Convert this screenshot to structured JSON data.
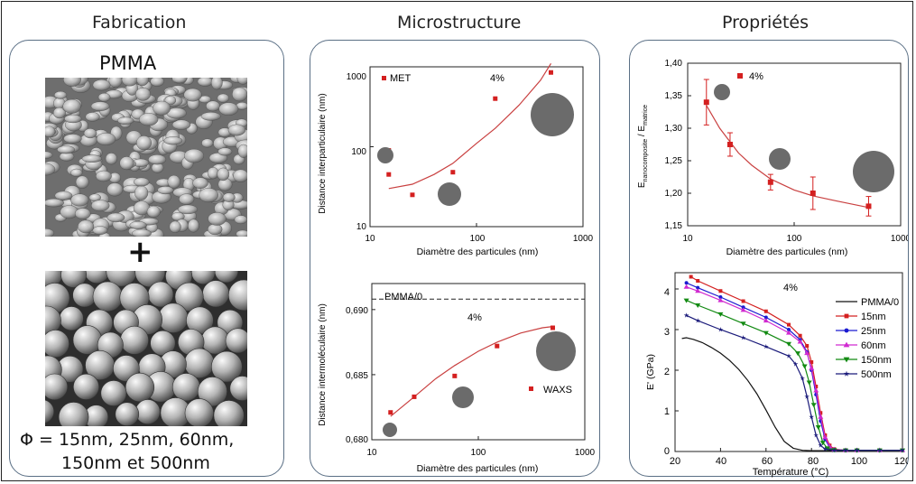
{
  "columns": {
    "fabrication": "Fabrication",
    "microstructure": "Microstructure",
    "proprietes": "Propriétés"
  },
  "fabrication": {
    "material": "PMMA",
    "plus": "+",
    "diameters_line1": "Φ = 15nm, 25nm, 60nm,",
    "diameters_line2": "150nm et 500nm"
  },
  "charts": {
    "met": {
      "legend": "MET",
      "annotation": "4%",
      "xlabel": "Diamètre des particules (nm)",
      "ylabel": "Distance interparticulaire (nm)",
      "xticks": [
        "10",
        "100",
        "1000"
      ],
      "yticks": [
        "10",
        "100",
        "1000"
      ]
    },
    "waxs": {
      "legend": "WAXS",
      "annotation": "4%",
      "reference": "PMMA/0",
      "xlabel": "Diamètre des particules (nm)",
      "ylabel": "Distance intermoléculaire (nm)",
      "xticks": [
        "10",
        "100",
        "1000"
      ],
      "yticks": [
        "0,680",
        "0,685",
        "0,690"
      ]
    },
    "modulus": {
      "legend": "4%",
      "xlabel": "Diamètre des particules (nm)",
      "ylabel_main": "E",
      "ylabel_sub1": "nanocomposite",
      "ylabel_mid": " / E",
      "ylabel_sub2": "matrice",
      "xticks": [
        "10",
        "100",
        "1000"
      ],
      "yticks": [
        "1,15",
        "1,20",
        "1,25",
        "1,30",
        "1,35",
        "1,40"
      ]
    },
    "dma": {
      "annotation": "4%",
      "xlabel": "Température (°C)",
      "ylabel": "E' (GPa)",
      "xticks": [
        "20",
        "40",
        "60",
        "80",
        "100",
        "120"
      ],
      "yticks": [
        "0",
        "1",
        "2",
        "3",
        "4"
      ],
      "legend": [
        "PMMA/0",
        "15nm",
        "25nm",
        "60nm",
        "150nm",
        "500nm"
      ]
    }
  },
  "chart_data": [
    {
      "type": "scatter",
      "xscale": "log",
      "yscale": "log",
      "xlim": [
        10,
        1000
      ],
      "ylim": [
        10,
        1000
      ],
      "xlabel": "Diamètre des particules (nm)",
      "ylabel": "Distance interparticulaire (nm)",
      "series": [
        {
          "name": "MET",
          "color": "#d42020",
          "x": [
            15,
            15,
            25,
            60,
            150,
            500
          ],
          "y": [
            90,
            45,
            25,
            48,
            400,
            850
          ]
        }
      ],
      "trend": {
        "color": "#c94040",
        "x": [
          15,
          25,
          40,
          60,
          100,
          150,
          250,
          400,
          500
        ],
        "y": [
          30,
          34,
          45,
          62,
          110,
          170,
          330,
          680,
          1100
        ]
      },
      "annotations": [
        "4%"
      ]
    },
    {
      "type": "scatter",
      "xscale": "log",
      "xlim": [
        10,
        1000
      ],
      "ylim": [
        0.68,
        0.692
      ],
      "xlabel": "Diamètre des particules (nm)",
      "ylabel": "Distance intermoléculaire (nm)",
      "reference_line": {
        "label": "PMMA/0",
        "y": 0.6908
      },
      "series": [
        {
          "name": "WAXS",
          "color": "#d42020",
          "x": [
            15,
            25,
            60,
            150,
            500
          ],
          "y": [
            0.6821,
            0.6833,
            0.6849,
            0.6872,
            0.6886
          ]
        }
      ],
      "trend": {
        "color": "#c94040",
        "x": [
          15,
          25,
          40,
          60,
          100,
          150,
          250,
          400,
          500
        ],
        "y": [
          0.6818,
          0.6833,
          0.6847,
          0.6857,
          0.6868,
          0.6875,
          0.6882,
          0.6886,
          0.6887
        ]
      },
      "annotations": [
        "4%"
      ]
    },
    {
      "type": "scatter",
      "xscale": "log",
      "xlim": [
        10,
        1000
      ],
      "ylim": [
        1.15,
        1.4
      ],
      "xlabel": "Diamètre des particules (nm)",
      "ylabel": "Enanocomposite / Ematrice",
      "series": [
        {
          "name": "4%",
          "color": "#d42020",
          "x": [
            15,
            25,
            60,
            150,
            500
          ],
          "y": [
            1.34,
            1.275,
            1.217,
            1.2,
            1.18
          ],
          "err": [
            0.035,
            0.018,
            0.012,
            0.025,
            0.015
          ]
        }
      ],
      "trend": {
        "color": "#c94040",
        "x": [
          15,
          20,
          30,
          40,
          60,
          100,
          150,
          250,
          500
        ],
        "y": [
          1.335,
          1.3,
          1.262,
          1.243,
          1.222,
          1.205,
          1.196,
          1.188,
          1.178
        ]
      }
    },
    {
      "type": "line",
      "xlim": [
        20,
        120
      ],
      "ylim": [
        0,
        4.4
      ],
      "xlabel": "Température (°C)",
      "ylabel": "E' (GPa)",
      "annotations": [
        "4%"
      ],
      "series": [
        {
          "name": "PMMA/0",
          "color": "#111111",
          "marker": "none",
          "x": [
            23,
            25,
            28,
            32,
            36,
            40,
            44,
            48,
            52,
            56,
            60,
            64,
            68,
            72,
            76,
            80,
            84,
            90,
            100,
            120
          ],
          "y": [
            2.78,
            2.8,
            2.76,
            2.68,
            2.56,
            2.42,
            2.24,
            2.02,
            1.75,
            1.42,
            1.02,
            0.6,
            0.25,
            0.08,
            0.03,
            0.02,
            0.02,
            0.02,
            0.02,
            0.02
          ]
        },
        {
          "name": "15nm",
          "color": "#d42020",
          "marker": "square",
          "x": [
            27,
            30,
            40,
            50,
            60,
            70,
            75,
            78,
            80,
            82,
            84,
            86,
            88,
            90,
            95,
            100,
            110,
            120
          ],
          "y": [
            4.3,
            4.2,
            3.95,
            3.7,
            3.45,
            3.12,
            2.85,
            2.6,
            2.2,
            1.6,
            0.95,
            0.4,
            0.15,
            0.06,
            0.03,
            0.03,
            0.03,
            0.03
          ]
        },
        {
          "name": "25nm",
          "color": "#1a1ad0",
          "marker": "circle",
          "x": [
            25,
            30,
            40,
            50,
            60,
            70,
            75,
            78,
            80,
            82,
            84,
            86,
            88,
            90,
            95,
            100,
            110,
            120
          ],
          "y": [
            4.15,
            4.03,
            3.8,
            3.55,
            3.3,
            3.0,
            2.75,
            2.45,
            2.0,
            1.4,
            0.75,
            0.3,
            0.1,
            0.05,
            0.03,
            0.03,
            0.03,
            0.03
          ]
        },
        {
          "name": "60nm",
          "color": "#d02ad0",
          "marker": "triangle-up",
          "x": [
            25,
            30,
            40,
            50,
            60,
            70,
            75,
            78,
            80,
            82,
            84,
            86,
            88,
            90,
            95,
            100,
            110,
            120
          ],
          "y": [
            4.05,
            3.95,
            3.72,
            3.48,
            3.22,
            2.92,
            2.7,
            2.42,
            2.05,
            1.5,
            0.85,
            0.35,
            0.12,
            0.05,
            0.03,
            0.03,
            0.03,
            0.03
          ]
        },
        {
          "name": "150nm",
          "color": "#128a12",
          "marker": "triangle-down",
          "x": [
            25,
            30,
            40,
            50,
            60,
            70,
            74,
            77,
            79,
            81,
            83,
            85,
            87,
            90,
            95,
            100,
            110,
            120
          ],
          "y": [
            3.72,
            3.6,
            3.38,
            3.15,
            2.92,
            2.65,
            2.42,
            2.1,
            1.7,
            1.15,
            0.6,
            0.22,
            0.08,
            0.04,
            0.03,
            0.03,
            0.03,
            0.03
          ]
        },
        {
          "name": "500nm",
          "color": "#1a1a7a",
          "marker": "star",
          "x": [
            25,
            30,
            40,
            50,
            60,
            70,
            73,
            76,
            78,
            80,
            82,
            84,
            86,
            90,
            95,
            100,
            110,
            120
          ],
          "y": [
            3.35,
            3.22,
            3.0,
            2.8,
            2.58,
            2.35,
            2.15,
            1.8,
            1.35,
            0.85,
            0.4,
            0.15,
            0.06,
            0.03,
            0.03,
            0.03,
            0.03,
            0.03
          ]
        }
      ]
    }
  ]
}
